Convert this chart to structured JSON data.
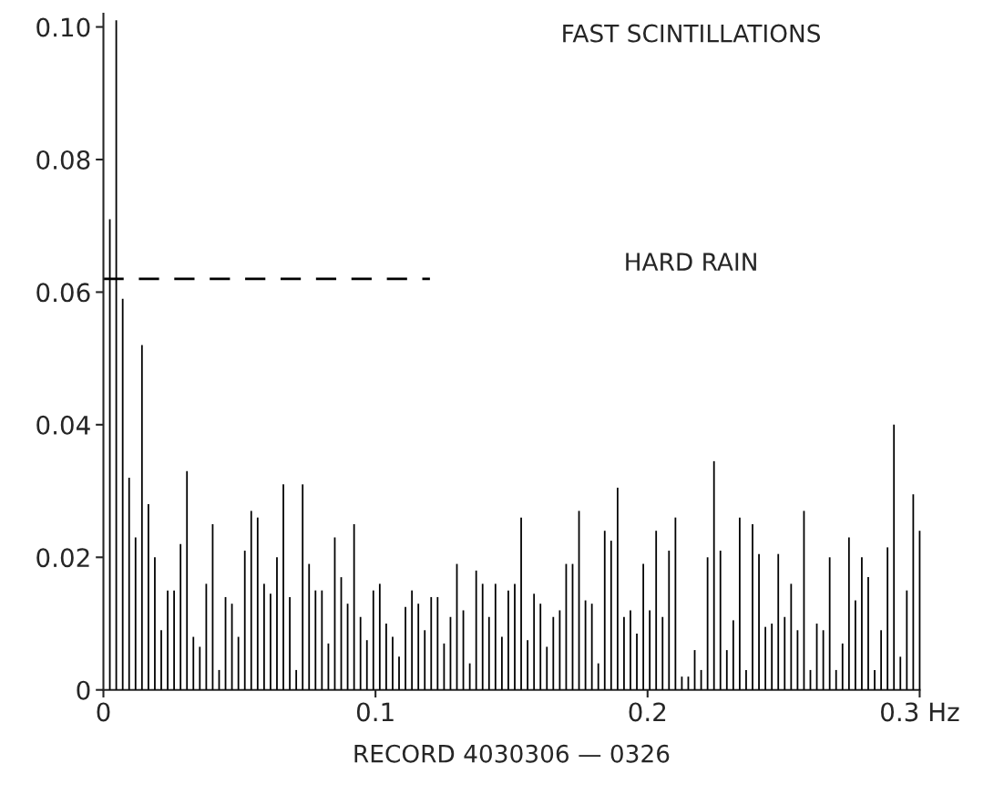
{
  "chart_data": {
    "type": "bar",
    "title": "FAST SCINTILLATIONS",
    "xlabel": "RECORD 4030306 — 0326",
    "annotations": [
      "HARD RAIN"
    ],
    "xlim": [
      0,
      0.3
    ],
    "ylim": [
      0,
      0.102
    ],
    "xticks": [
      0,
      0.1,
      0.2,
      {
        "value": 0.3,
        "label": "0.3 Hz"
      }
    ],
    "yticks": [
      0,
      0.02,
      0.04,
      0.06,
      0.08,
      {
        "value": 0.1,
        "label": "0.10"
      }
    ],
    "grid": false,
    "legend": false,
    "series": [
      {
        "color": "#000000",
        "x": [
          0.00236,
          0.00472,
          0.00709,
          0.00945,
          0.01181,
          0.01417,
          0.01654,
          0.0189,
          0.02126,
          0.02362,
          0.02598,
          0.02835,
          0.03071,
          0.03307,
          0.03543,
          0.0378,
          0.04016,
          0.04252,
          0.04488,
          0.04724,
          0.04961,
          0.05197,
          0.05433,
          0.05669,
          0.05906,
          0.06142,
          0.06378,
          0.06614,
          0.0685,
          0.07087,
          0.07323,
          0.07559,
          0.07795,
          0.08031,
          0.08268,
          0.08504,
          0.0874,
          0.08976,
          0.09213,
          0.09449,
          0.09685,
          0.09921,
          0.10157,
          0.10394,
          0.1063,
          0.10866,
          0.11102,
          0.11339,
          0.11575,
          0.11811,
          0.12047,
          0.12283,
          0.1252,
          0.12756,
          0.12992,
          0.13228,
          0.13465,
          0.13701,
          0.13937,
          0.14173,
          0.14409,
          0.14646,
          0.14882,
          0.15118,
          0.15354,
          0.15591,
          0.15827,
          0.16063,
          0.16299,
          0.16535,
          0.16772,
          0.17008,
          0.17244,
          0.1748,
          0.17717,
          0.17953,
          0.18189,
          0.18425,
          0.18661,
          0.18898,
          0.19134,
          0.1937,
          0.19606,
          0.19843,
          0.20079,
          0.20315,
          0.20551,
          0.20787,
          0.21024,
          0.2126,
          0.21496,
          0.21732,
          0.21969,
          0.22205,
          0.22441,
          0.22677,
          0.22913,
          0.2315,
          0.23386,
          0.23622,
          0.23858,
          0.24094,
          0.24331,
          0.24567,
          0.24803,
          0.25039,
          0.25276,
          0.25512,
          0.25748,
          0.25984,
          0.2622,
          0.26457,
          0.26693,
          0.26929,
          0.27165,
          0.27402,
          0.27638,
          0.27874,
          0.2811,
          0.28346,
          0.28583,
          0.28819,
          0.29055,
          0.29291,
          0.29528,
          0.29764,
          0.3
        ],
        "values": [
          0.071,
          0.101,
          0.059,
          0.032,
          0.023,
          0.052,
          0.028,
          0.02,
          0.009,
          0.015,
          0.015,
          0.022,
          0.033,
          0.008,
          0.0065,
          0.016,
          0.025,
          0.003,
          0.014,
          0.013,
          0.008,
          0.021,
          0.027,
          0.026,
          0.016,
          0.0145,
          0.02,
          0.031,
          0.014,
          0.003,
          0.031,
          0.019,
          0.015,
          0.015,
          0.007,
          0.023,
          0.017,
          0.013,
          0.025,
          0.011,
          0.0075,
          0.015,
          0.016,
          0.01,
          0.008,
          0.005,
          0.0125,
          0.015,
          0.013,
          0.009,
          0.014,
          0.014,
          0.007,
          0.011,
          0.019,
          0.012,
          0.004,
          0.018,
          0.016,
          0.011,
          0.016,
          0.008,
          0.015,
          0.016,
          0.026,
          0.0075,
          0.0145,
          0.013,
          0.0065,
          0.011,
          0.012,
          0.019,
          0.019,
          0.027,
          0.0135,
          0.013,
          0.004,
          0.024,
          0.0225,
          0.0305,
          0.011,
          0.012,
          0.0085,
          0.019,
          0.012,
          0.024,
          0.011,
          0.021,
          0.026,
          0.002,
          0.002,
          0.006,
          0.003,
          0.02,
          0.0345,
          0.021,
          0.006,
          0.0105,
          0.026,
          0.003,
          0.025,
          0.0205,
          0.0095,
          0.01,
          0.0205,
          0.011,
          0.016,
          0.009,
          0.027,
          0.003,
          0.01,
          0.009,
          0.02,
          0.003,
          0.007,
          0.023,
          0.0135,
          0.02,
          0.017,
          0.003,
          0.009,
          0.0215,
          0.04,
          0.005,
          0.015,
          0.0295,
          0.024
        ]
      },
      {
        "type": "line",
        "color": "#000000",
        "line_style": "dashed",
        "x": [
          0,
          0.12
        ],
        "values": [
          0.062,
          0.062
        ]
      }
    ]
  }
}
